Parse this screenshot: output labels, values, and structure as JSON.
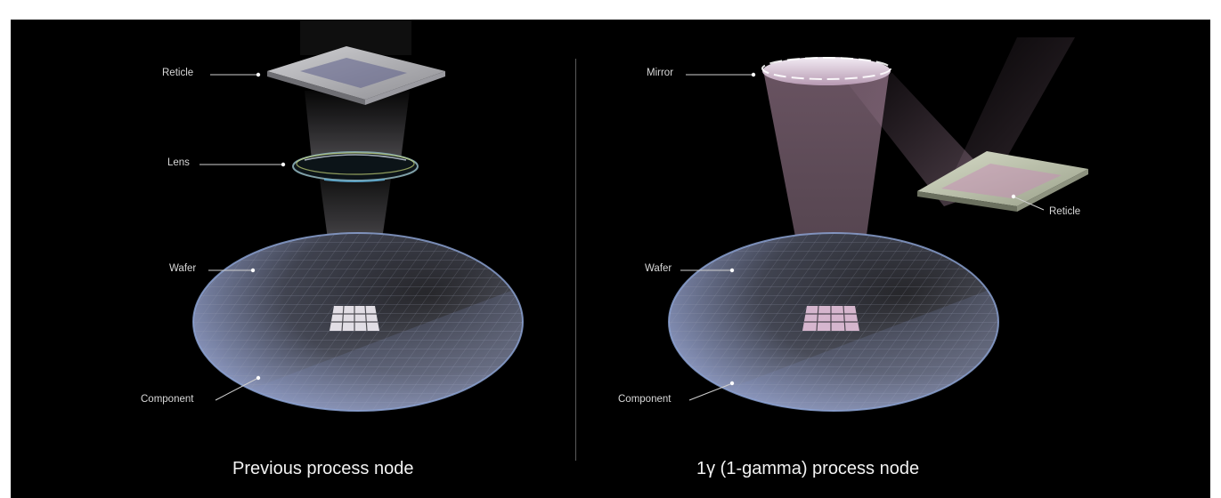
{
  "colors": {
    "background": "#000000",
    "label_text": "#d8d8d8",
    "leader_line": "#cfcfcf",
    "beam_left": "#e9e4ef",
    "beam_right": "#e2b8d4",
    "wafer_edge": "#8fa6d8"
  },
  "left": {
    "caption": "Previous process node",
    "labels": {
      "reticle": "Reticle",
      "lens": "Lens",
      "wafer": "Wafer",
      "component": "Component"
    }
  },
  "right": {
    "caption": "1γ (1-gamma) process node",
    "labels": {
      "mirror": "Mirror",
      "reticle": "Reticle",
      "wafer": "Wafer",
      "component": "Component"
    }
  }
}
